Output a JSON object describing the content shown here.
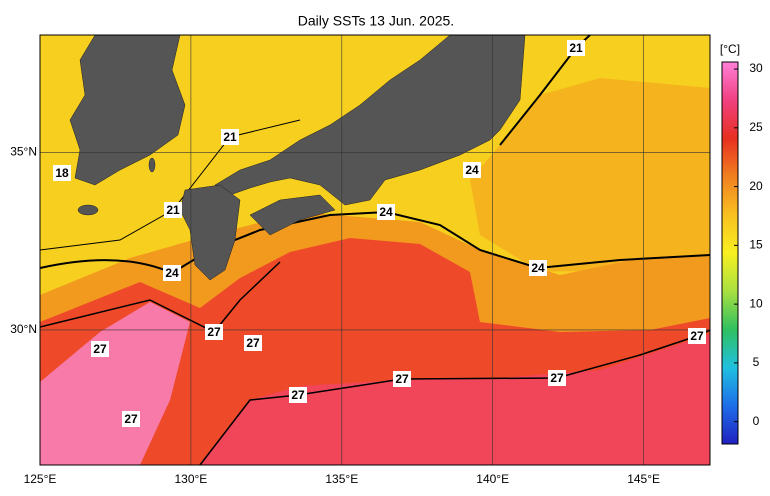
{
  "chart_data": {
    "type": "map",
    "title": "Daily SSTs 13 Jun. 2025.",
    "xlim": [
      125,
      147.2
    ],
    "ylim": [
      26.2,
      38.3
    ],
    "xticks": [
      {
        "value": 125,
        "label": "125°E"
      },
      {
        "value": 130,
        "label": "130°E"
      },
      {
        "value": 135,
        "label": "135°E"
      },
      {
        "value": 140,
        "label": "140°E"
      },
      {
        "value": 145,
        "label": "145°E"
      }
    ],
    "yticks": [
      {
        "value": 30,
        "label": "30°N"
      },
      {
        "value": 35,
        "label": "35°N"
      }
    ],
    "colorbar": {
      "label": "[°C]",
      "lim": [
        -1.9,
        30.6
      ],
      "ticks": [
        0,
        5,
        10,
        15,
        20,
        25,
        30
      ],
      "colors": [
        "#2020c0",
        "#1e6ee8",
        "#20c0e0",
        "#30c060",
        "#a8e040",
        "#f8f020",
        "#f8c020",
        "#f08020",
        "#e83020",
        "#f04080",
        "#ff80d8"
      ]
    },
    "contour_labels": [
      "21",
      "21",
      "18",
      "24",
      "21",
      "24",
      "24",
      "24",
      "27",
      "27",
      "27",
      "27",
      "27",
      "27",
      "27",
      "27"
    ]
  }
}
